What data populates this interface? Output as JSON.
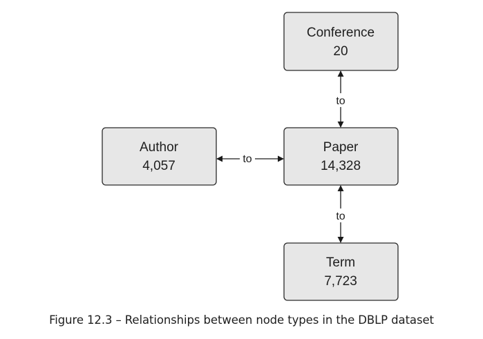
{
  "nodes": {
    "conference": {
      "name": "Conference",
      "count": "20"
    },
    "paper": {
      "name": "Paper",
      "count": "14,328"
    },
    "author": {
      "name": "Author",
      "count": "4,057"
    },
    "term": {
      "name": "Term",
      "count": "7,723"
    }
  },
  "edges": {
    "paper_conference": {
      "label": "to"
    },
    "author_paper": {
      "label": "to"
    },
    "paper_term": {
      "label": "to"
    }
  },
  "caption": "Figure 12.3 – Relationships between node types in the DBLP dataset",
  "colors": {
    "node_fill": "#e7e7e7",
    "node_stroke": "#2a2a2a",
    "text": "#1e1e1e"
  }
}
